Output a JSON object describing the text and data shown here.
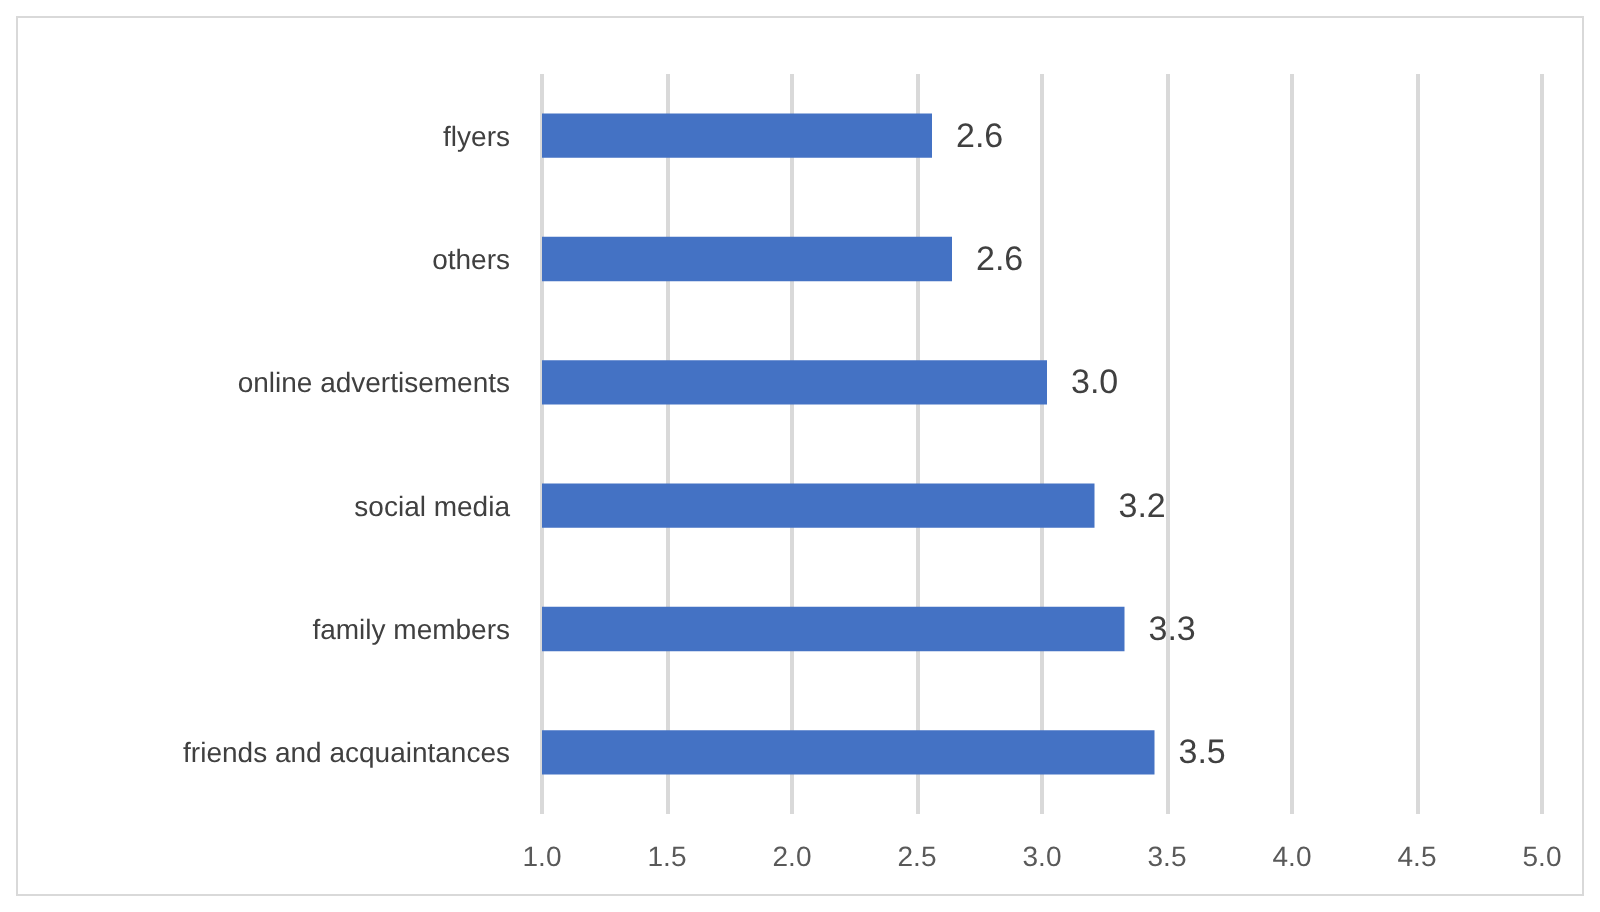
{
  "chart_data": {
    "type": "bar",
    "orientation": "horizontal",
    "categories": [
      "flyers",
      "others",
      "online advertisements",
      "social media",
      "family members",
      "friends and acquaintances"
    ],
    "values": [
      2.56,
      2.64,
      3.02,
      3.21,
      3.33,
      3.45
    ],
    "value_labels": [
      "2.6",
      "2.6",
      "3.0",
      "3.2",
      "3.3",
      "3.5"
    ],
    "color": "#4472c4",
    "xlim": [
      1.0,
      5.0
    ],
    "xticks": [
      {
        "value": 1.0,
        "label": "1.0"
      },
      {
        "value": 1.5,
        "label": "1.5"
      },
      {
        "value": 2.0,
        "label": "2.0"
      },
      {
        "value": 2.5,
        "label": "2.5"
      },
      {
        "value": 3.0,
        "label": "3.0"
      },
      {
        "value": 3.5,
        "label": "3.5"
      },
      {
        "value": 4.0,
        "label": "4.0"
      },
      {
        "value": 4.5,
        "label": "4.5"
      },
      {
        "value": 5.0,
        "label": "5.0"
      }
    ],
    "grid": "x"
  }
}
